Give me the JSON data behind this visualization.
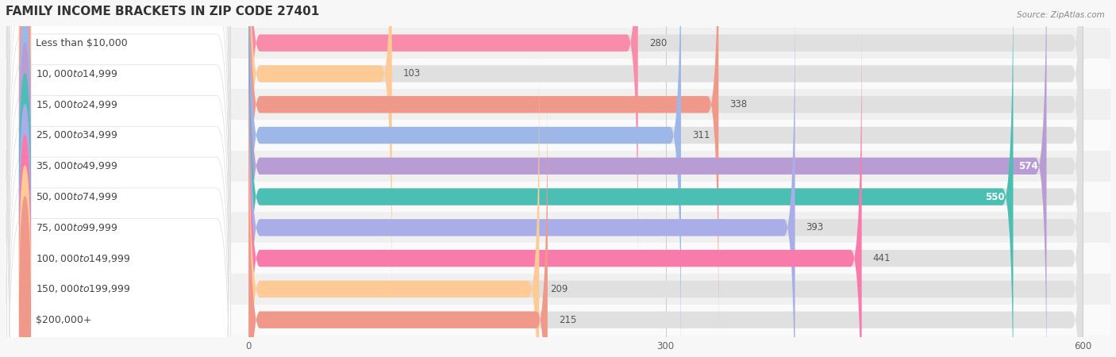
{
  "title": "FAMILY INCOME BRACKETS IN ZIP CODE 27401",
  "source": "Source: ZipAtlas.com",
  "categories": [
    "Less than $10,000",
    "$10,000 to $14,999",
    "$15,000 to $24,999",
    "$25,000 to $34,999",
    "$35,000 to $49,999",
    "$50,000 to $74,999",
    "$75,000 to $99,999",
    "$100,000 to $149,999",
    "$150,000 to $199,999",
    "$200,000+"
  ],
  "values": [
    280,
    103,
    338,
    311,
    574,
    550,
    393,
    441,
    209,
    215
  ],
  "bar_colors": [
    "#F98BAB",
    "#FECB96",
    "#F0998A",
    "#9DB8E8",
    "#B89DD4",
    "#4BBFB4",
    "#A9ADE8",
    "#F87BAB",
    "#FECB96",
    "#F0998A"
  ],
  "data_max": 600,
  "xlim_left": -175,
  "xlim_right": 620,
  "xticks": [
    0,
    300,
    600
  ],
  "row_bg_colors": [
    "#f0f0f0",
    "#fafafa"
  ],
  "bar_track_color": "#e0e0e0",
  "background_color": "#f7f7f7",
  "title_fontsize": 11,
  "label_fontsize": 9,
  "value_fontsize": 8.5,
  "label_color": "#444444",
  "value_color_dark": "#555555",
  "value_color_light": "#ffffff"
}
